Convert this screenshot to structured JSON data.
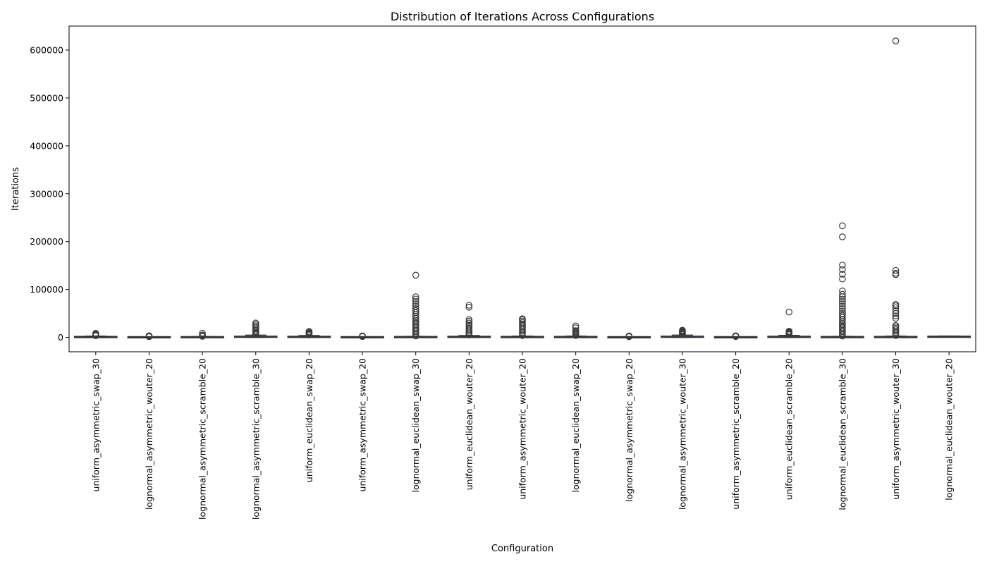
{
  "chart_data": {
    "type": "box",
    "title": "Distribution of Iterations Across Configurations",
    "xlabel": "Configuration",
    "ylabel": "Iterations",
    "ylim": [
      -30000,
      650000
    ],
    "yticks": [
      0,
      100000,
      200000,
      300000,
      400000,
      500000,
      600000
    ],
    "grid": false,
    "colors": {
      "box": "#3a76a8",
      "line": "#333333",
      "flier": "#3a3a3a"
    },
    "categories": [
      "uniform_asymmetric_swap_30",
      "lognormal_asymmetric_wouter_20",
      "lognormal_asymmetric_scramble_20",
      "lognormal_asymmetric_scramble_30",
      "uniform_euclidean_swap_20",
      "uniform_asymmetric_swap_20",
      "lognormal_euclidean_swap_30",
      "uniform_euclidean_wouter_20",
      "uniform_asymmetric_wouter_20",
      "lognormal_euclidean_swap_20",
      "lognormal_asymmetric_swap_20",
      "lognormal_asymmetric_wouter_30",
      "uniform_asymmetric_scramble_20",
      "uniform_euclidean_scramble_20",
      "lognormal_euclidean_scramble_30",
      "uniform_asymmetric_wouter_30",
      "lognormal_euclidean_wouter_20"
    ],
    "boxes": [
      {
        "q1": 200,
        "median": 700,
        "q3": 1500,
        "whisker_low": 0,
        "whisker_high": 3000,
        "fliers": [
          3500,
          4500,
          5500,
          6500,
          7500,
          8500
        ]
      },
      {
        "q1": 100,
        "median": 300,
        "q3": 600,
        "whisker_low": 0,
        "whisker_high": 1200,
        "fliers": [
          1500,
          2000,
          2500,
          3000,
          3500
        ]
      },
      {
        "q1": 100,
        "median": 400,
        "q3": 900,
        "whisker_low": 0,
        "whisker_high": 1800,
        "fliers": [
          2200,
          3000,
          4000,
          5000,
          9000
        ]
      },
      {
        "q1": 300,
        "median": 900,
        "q3": 2500,
        "whisker_low": 0,
        "whisker_high": 5000,
        "fliers": [
          6000,
          8000,
          10000,
          12000,
          15000,
          18000,
          21000,
          24000,
          27000,
          30000
        ]
      },
      {
        "q1": 300,
        "median": 800,
        "q3": 2000,
        "whisker_low": 0,
        "whisker_high": 4000,
        "fliers": [
          5000,
          6500,
          8000,
          9500,
          11000,
          12500
        ]
      },
      {
        "q1": 100,
        "median": 300,
        "q3": 700,
        "whisker_low": 0,
        "whisker_high": 1400,
        "fliers": [
          1800,
          2500,
          3200
        ]
      },
      {
        "q1": 200,
        "median": 500,
        "q3": 1200,
        "whisker_low": 0,
        "whisker_high": 2500,
        "fliers": [
          3000,
          6000,
          9000,
          12000,
          15000,
          18000,
          21000,
          24000,
          27000,
          30000,
          33000,
          36000,
          40000,
          44000,
          48000,
          52000,
          56000,
          60000,
          65000,
          70000,
          75000,
          80000,
          85000,
          130000
        ]
      },
      {
        "q1": 300,
        "median": 800,
        "q3": 2000,
        "whisker_low": 0,
        "whisker_high": 4000,
        "fliers": [
          5000,
          8000,
          11000,
          14000,
          17000,
          20000,
          23000,
          26000,
          30000,
          34000,
          37000,
          63000,
          67000
        ]
      },
      {
        "q1": 200,
        "median": 600,
        "q3": 1500,
        "whisker_low": 0,
        "whisker_high": 3000,
        "fliers": [
          4000,
          7000,
          10000,
          13000,
          16000,
          19000,
          22000,
          25000,
          28000,
          31000,
          34000,
          37000,
          39000
        ]
      },
      {
        "q1": 200,
        "median": 600,
        "q3": 1500,
        "whisker_low": 0,
        "whisker_high": 3000,
        "fliers": [
          4000,
          6000,
          8000,
          10000,
          12000,
          14000,
          20000,
          24000
        ]
      },
      {
        "q1": 100,
        "median": 300,
        "q3": 600,
        "whisker_low": 0,
        "whisker_high": 1200,
        "fliers": [
          1500,
          2200,
          3000
        ]
      },
      {
        "q1": 300,
        "median": 900,
        "q3": 2500,
        "whisker_low": 0,
        "whisker_high": 5000,
        "fliers": [
          6000,
          7500,
          9000,
          10500,
          12000,
          13500,
          15000
        ]
      },
      {
        "q1": 100,
        "median": 300,
        "q3": 700,
        "whisker_low": 0,
        "whisker_high": 1400,
        "fliers": [
          1800,
          2500,
          3500
        ]
      },
      {
        "q1": 300,
        "median": 900,
        "q3": 2200,
        "whisker_low": 0,
        "whisker_high": 4500,
        "fliers": [
          5500,
          7000,
          8500,
          10000,
          11500,
          13000,
          53000
        ]
      },
      {
        "q1": 200,
        "median": 500,
        "q3": 1200,
        "whisker_low": 0,
        "whisker_high": 2500,
        "fliers": [
          3000,
          6000,
          9000,
          12000,
          15000,
          18000,
          21000,
          24000,
          27000,
          30000,
          34000,
          38000,
          42000,
          46000,
          50000,
          55000,
          60000,
          65000,
          70000,
          75000,
          80000,
          85000,
          90000,
          97000,
          122000,
          132000,
          142000,
          151000,
          210000,
          233000
        ]
      },
      {
        "q1": 200,
        "median": 600,
        "q3": 1500,
        "whisker_low": 0,
        "whisker_high": 3000,
        "fliers": [
          4000,
          7000,
          10000,
          13000,
          16000,
          19000,
          22000,
          25000,
          40000,
          45000,
          50000,
          55000,
          62000,
          66000,
          69000,
          131000,
          134000,
          140000,
          619000
        ]
      },
      {
        "q1": 700,
        "median": 1300,
        "q3": 2100,
        "whisker_low": 300,
        "whisker_high": 3200,
        "fliers": []
      }
    ]
  }
}
